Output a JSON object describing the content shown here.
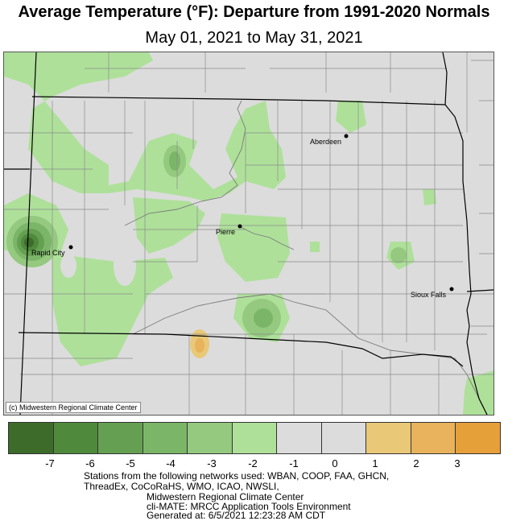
{
  "title": "Average Temperature (°F): Departure from 1991-2020 Normals",
  "subtitle": "May 01, 2021 to May 31, 2021",
  "credit": "(c) Midwestern Regional Climate Center",
  "cities": [
    {
      "name": "Aberdeen"
    },
    {
      "name": "Pierre"
    },
    {
      "name": "Rapid City"
    },
    {
      "name": "Sioux Falls"
    }
  ],
  "legend": {
    "colors": [
      "#3c6b2a",
      "#4f8a3c",
      "#65a052",
      "#7bb668",
      "#94c97f",
      "#aee09a",
      "#dcdcdc",
      "#dcdcdc",
      "#e9c877",
      "#e8b35c",
      "#e6a03a"
    ],
    "ticks": [
      "-7",
      "-6",
      "-5",
      "-4",
      "-3",
      "-2",
      "-1",
      "0",
      "1",
      "2",
      "3"
    ]
  },
  "footer": {
    "line1": "Stations from the following networks used: WBAN, COOP, FAA, GHCN,",
    "line2": "ThreadEx, CoCoRaHS, WMO, ICAO, NWSLI,",
    "line3": "Midwestern Regional Climate Center",
    "line4": "cli-MATE: MRCC Application Tools Environment",
    "line5": "Generated at: 6/5/2021 12:23:28 AM CDT"
  }
}
